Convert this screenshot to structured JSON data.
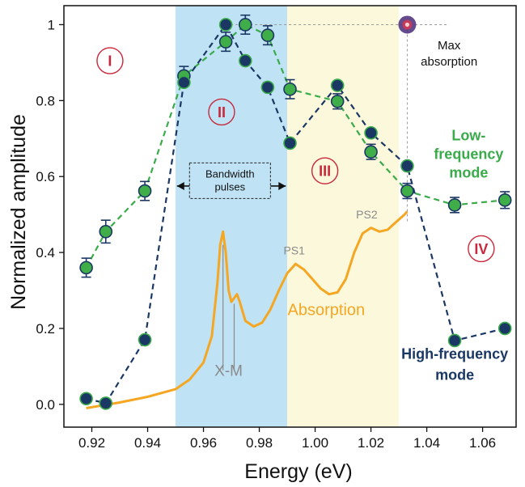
{
  "chart_data": {
    "type": "line",
    "xlabel": "Energy (eV)",
    "ylabel": "Normalized amplitude",
    "xlim": [
      0.91,
      1.072
    ],
    "ylim": [
      -0.06,
      1.05
    ],
    "xticks": [
      0.92,
      0.94,
      0.96,
      0.98,
      1.0,
      1.02,
      1.04,
      1.06
    ],
    "xtick_labels": [
      "0.92",
      "0.94",
      "0.96",
      "0.98",
      "1.00",
      "1.02",
      "1.04",
      "1.06"
    ],
    "yticks": [
      0.0,
      0.2,
      0.4,
      0.6,
      0.8,
      1.0
    ],
    "ytick_labels": [
      "0.0",
      "0.2",
      "0.4",
      "0.6",
      "0.8",
      "1"
    ],
    "regions": [
      {
        "id": "blue",
        "x0": 0.95,
        "x1": 0.99,
        "color": "#bfe3f5"
      },
      {
        "id": "yellow",
        "x0": 0.99,
        "x1": 1.03,
        "color": "#fbf8dc"
      }
    ],
    "region_labels": [
      "I",
      "II",
      "III",
      "IV"
    ],
    "region_label_pos": [
      {
        "x": 0.9265,
        "y": 0.905
      },
      {
        "x": 0.9665,
        "y": 0.77
      },
      {
        "x": 1.0035,
        "y": 0.615
      },
      {
        "x": 1.0595,
        "y": 0.41
      }
    ],
    "series": [
      {
        "name": "Low-frequency mode",
        "color": "#3aab4a",
        "marker_fill": "#3fae49",
        "x": [
          0.918,
          0.925,
          0.939,
          0.953,
          0.968,
          0.975,
          0.983,
          0.991,
          1.008,
          1.02,
          1.033,
          1.05,
          1.068
        ],
        "y": [
          0.36,
          0.455,
          0.562,
          0.865,
          0.955,
          1.0,
          0.972,
          0.83,
          0.798,
          0.665,
          0.562,
          0.525,
          0.538
        ],
        "err": [
          0.025,
          0.03,
          0.025,
          0.025,
          0.025,
          0.025,
          0.025,
          0.025,
          0.02,
          0.02,
          0.02,
          0.02,
          0.022
        ]
      },
      {
        "name": "High-frequency mode",
        "color": "#1b3764",
        "marker_fill": "#1b3764",
        "x": [
          0.918,
          0.925,
          0.939,
          0.953,
          0.968,
          0.975,
          0.983,
          0.991,
          1.008,
          1.02,
          1.033,
          1.05,
          1.068
        ],
        "y": [
          0.015,
          0.003,
          0.17,
          0.848,
          1.0,
          0.905,
          0.835,
          0.688,
          0.84,
          0.715,
          0.628,
          0.168,
          0.2
        ],
        "err": [
          0,
          0,
          0,
          0,
          0,
          0,
          0,
          0,
          0,
          0,
          0,
          0,
          0
        ]
      }
    ],
    "absorption": {
      "name": "Absorption",
      "color": "#f5a623",
      "x": [
        0.918,
        0.93,
        0.94,
        0.95,
        0.955,
        0.96,
        0.963,
        0.965,
        0.966,
        0.967,
        0.968,
        0.969,
        0.97,
        0.971,
        0.972,
        0.973,
        0.975,
        0.978,
        0.981,
        0.984,
        0.987,
        0.99,
        0.993,
        0.996,
        0.999,
        1.002,
        1.005,
        1.008,
        1.011,
        1.014,
        1.017,
        1.02,
        1.023,
        1.026,
        1.029,
        1.032,
        1.033
      ],
      "y": [
        -0.01,
        0.005,
        0.02,
        0.04,
        0.065,
        0.11,
        0.18,
        0.32,
        0.42,
        0.455,
        0.4,
        0.3,
        0.27,
        0.28,
        0.29,
        0.27,
        0.22,
        0.205,
        0.215,
        0.25,
        0.3,
        0.345,
        0.37,
        0.355,
        0.33,
        0.305,
        0.29,
        0.295,
        0.33,
        0.4,
        0.45,
        0.465,
        0.455,
        0.46,
        0.48,
        0.5,
        0.508
      ]
    },
    "max_point": {
      "x": 1.033,
      "y": 1.0
    },
    "annotations": {
      "max_absorption": "Max\nabsorption",
      "bandwidth": "Bandwidth\npulses",
      "xm": "X-M",
      "ps1": "PS1",
      "ps2": "PS2",
      "absorption": "Absorption",
      "low_frequency": "Low-\nfrequency\nmode",
      "high_frequency": "High-frequency\nmode"
    }
  }
}
